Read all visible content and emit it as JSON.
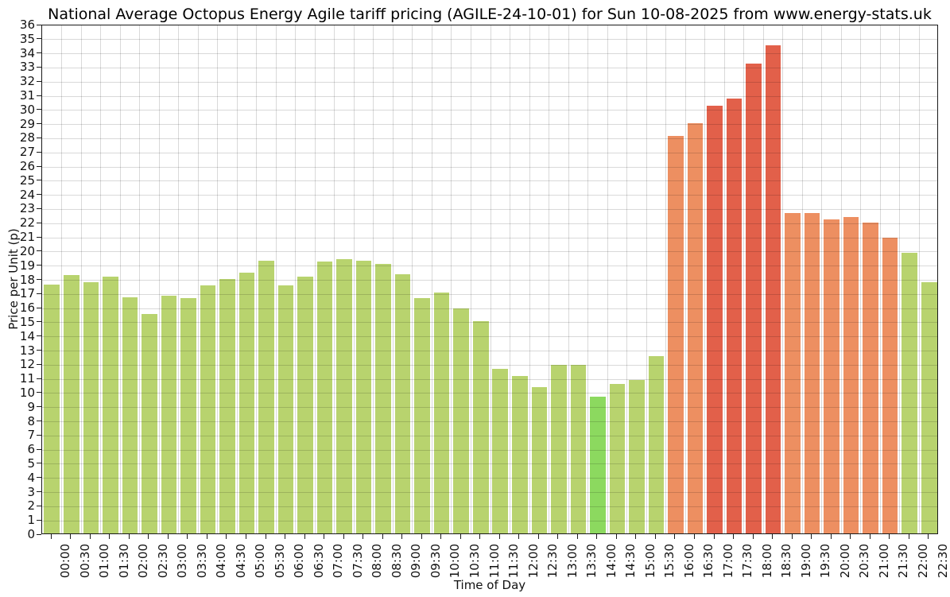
{
  "chart_data": {
    "type": "bar",
    "title": "National Average Octopus Energy Agile tariff pricing (AGILE-24-10-01) for Sun 10-08-2025 from www.energy-stats.uk",
    "xlabel": "Time of Day",
    "ylabel": "Price per Unit (p)",
    "ylim": [
      0,
      36
    ],
    "ytick_step": 1,
    "grid": true,
    "legend": "none",
    "categories": [
      "00:00",
      "00:30",
      "01:00",
      "01:30",
      "02:00",
      "02:30",
      "03:00",
      "03:30",
      "04:00",
      "04:30",
      "05:00",
      "05:30",
      "06:00",
      "06:30",
      "07:00",
      "07:30",
      "08:00",
      "08:30",
      "09:00",
      "09:30",
      "10:00",
      "10:30",
      "11:00",
      "11:30",
      "12:00",
      "12:30",
      "13:00",
      "13:30",
      "14:00",
      "14:30",
      "15:00",
      "15:30",
      "16:00",
      "16:30",
      "17:00",
      "17:30",
      "18:00",
      "18:30",
      "19:00",
      "19:30",
      "20:00",
      "20:30",
      "21:00",
      "21:30",
      "22:00",
      "22:30"
    ],
    "values": [
      17.6,
      18.25,
      17.75,
      18.15,
      16.7,
      15.5,
      16.8,
      16.6,
      17.5,
      18.0,
      18.45,
      19.25,
      17.55,
      18.15,
      19.2,
      19.35,
      19.25,
      19.05,
      18.3,
      16.65,
      17.0,
      15.9,
      15.0,
      11.6,
      11.1,
      10.35,
      11.9,
      11.9,
      9.65,
      10.55,
      10.85,
      12.55,
      28.1,
      29.0,
      30.2,
      30.7,
      33.2,
      34.5,
      22.65,
      22.65,
      22.2,
      22.35,
      21.95,
      20.9,
      19.8,
      17.75
    ],
    "bar_colors": [
      "green",
      "green",
      "green",
      "green",
      "green",
      "green",
      "green",
      "green",
      "green",
      "green",
      "green",
      "green",
      "green",
      "green",
      "green",
      "green",
      "green",
      "green",
      "green",
      "green",
      "green",
      "green",
      "green",
      "green",
      "green",
      "green",
      "green",
      "green",
      "bright_green",
      "green",
      "green",
      "green",
      "orange",
      "orange",
      "red",
      "red",
      "red",
      "red",
      "orange",
      "orange",
      "orange",
      "orange",
      "orange",
      "orange",
      "green",
      "green"
    ],
    "palette": {
      "green": "#b8d36e",
      "bright_green": "#8cd95f",
      "orange": "#ed8f61",
      "red": "#e2604a"
    }
  }
}
